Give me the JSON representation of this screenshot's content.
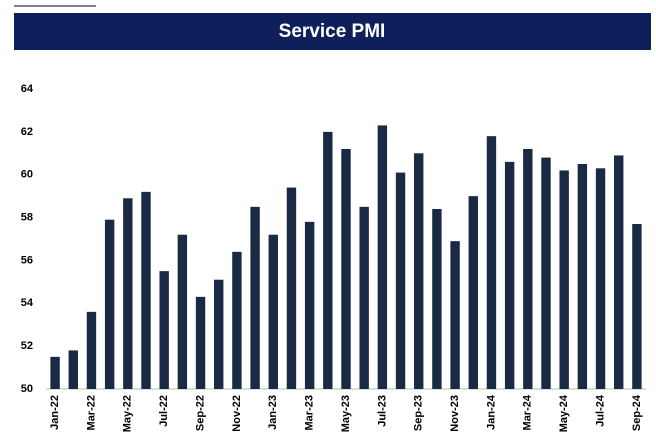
{
  "chart_data": {
    "type": "bar",
    "title": "Service PMI",
    "categories": [
      "Jan-22",
      null,
      "Mar-22",
      null,
      "May-22",
      null,
      "Jul-22",
      null,
      "Sep-22",
      null,
      "Nov-22",
      null,
      "Jan-23",
      null,
      "Mar-23",
      null,
      "May-23",
      null,
      "Jul-23",
      null,
      "Sep-23",
      null,
      "Nov-23",
      null,
      "Jan-24",
      null,
      "Mar-24",
      null,
      "May-24",
      null,
      "Jul-24",
      null,
      "Sep-24"
    ],
    "values": [
      51.5,
      51.8,
      53.6,
      57.9,
      58.9,
      59.2,
      55.5,
      57.2,
      54.3,
      55.1,
      56.4,
      58.5,
      57.2,
      59.4,
      57.8,
      62.0,
      61.2,
      58.5,
      62.3,
      60.1,
      61.0,
      58.4,
      56.9,
      59.0,
      61.8,
      60.6,
      61.2,
      60.8,
      60.2,
      60.5,
      60.3,
      60.9,
      57.7
    ],
    "color": "#1b2a44",
    "ylim": [
      50,
      64
    ],
    "yticks": [
      50,
      52,
      54,
      56,
      58,
      60,
      62,
      64
    ],
    "grid": false
  }
}
